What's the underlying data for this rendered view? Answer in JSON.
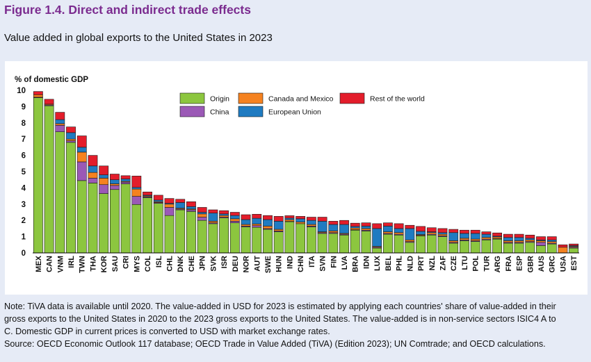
{
  "figure_title": "Figure 1.4. Direct and indirect trade effects",
  "subtitle": "Value added in global exports to the United States in 2023",
  "notes": {
    "line1": "Note: TiVA data is available until 2020. The value-added in USD for 2023 is estimated by applying each countries' share of value-added in their",
    "line2": "gross exports to the United States in 2020 to the 2023 gross exports to the United States. The value-added is in non-service sectors ISIC4 A to",
    "line3": "C. Domestic GDP in current prices is converted to USD with market exchange rates.",
    "line4": "Source: OECD Economic Outlook 117 database; OECD Trade in Value Added (TiVA) (Edition 2023); UN Comtrade; and OECD calculations."
  },
  "chart_data": {
    "type": "bar",
    "stacked": true,
    "ylabel": "% of domestic GDP",
    "ylim": [
      0,
      10
    ],
    "yticks": [
      0,
      1,
      2,
      3,
      4,
      5,
      6,
      7,
      8,
      9,
      10
    ],
    "grid": false,
    "legend_position": "top-right",
    "categories": [
      "MEX",
      "CAN",
      "VNM",
      "IRL",
      "TWN",
      "THA",
      "KOR",
      "SAU",
      "CRI",
      "MYS",
      "COL",
      "ISL",
      "CHL",
      "DNK",
      "CHE",
      "JPN",
      "SVK",
      "ISR",
      "DEU",
      "NOR",
      "AUT",
      "SWE",
      "HUN",
      "IND",
      "CHN",
      "ITA",
      "SVN",
      "FIN",
      "LVA",
      "BRA",
      "IDN",
      "LUX",
      "BEL",
      "PHL",
      "NLD",
      "PRT",
      "NZL",
      "ZAF",
      "CZE",
      "LTU",
      "POL",
      "TUR",
      "ARG",
      "FRA",
      "ESP",
      "GBR",
      "AUS",
      "GRC",
      "USA",
      "EST"
    ],
    "series": [
      {
        "name": "Origin",
        "color": "#8cc63f",
        "values": [
          9.55,
          9.05,
          7.45,
          6.8,
          4.45,
          4.3,
          3.65,
          3.9,
          4.25,
          2.98,
          3.4,
          3.05,
          2.3,
          2.65,
          2.55,
          2.0,
          1.8,
          2.15,
          1.85,
          1.6,
          1.58,
          1.45,
          1.3,
          1.92,
          1.8,
          1.6,
          1.2,
          1.2,
          1.1,
          1.4,
          1.35,
          0.3,
          1.15,
          1.1,
          0.65,
          1.05,
          1.1,
          1.0,
          0.6,
          0.75,
          0.7,
          0.8,
          0.85,
          0.6,
          0.6,
          0.65,
          0.45,
          0.55,
          0.0,
          0.3
        ]
      },
      {
        "name": "China",
        "color": "#9b59b6",
        "values": [
          0.03,
          0.05,
          0.4,
          0.1,
          1.15,
          0.3,
          0.55,
          0.25,
          0.1,
          0.5,
          0.05,
          0.05,
          0.5,
          0.05,
          0.1,
          0.2,
          0.05,
          0.05,
          0.1,
          0.05,
          0.1,
          0.05,
          0.05,
          0.02,
          0.0,
          0.05,
          0.05,
          0.05,
          0.05,
          0.03,
          0.05,
          0.05,
          0.05,
          0.05,
          0.05,
          0.03,
          0.05,
          0.05,
          0.05,
          0.05,
          0.05,
          0.05,
          0.03,
          0.05,
          0.05,
          0.05,
          0.2,
          0.05,
          0.0,
          0.05
        ]
      },
      {
        "name": "Canada and Mexico",
        "color": "#f58220",
        "values": [
          0.15,
          0.05,
          0.1,
          0.1,
          0.6,
          0.35,
          0.4,
          0.1,
          0.05,
          0.45,
          0.05,
          0.05,
          0.2,
          0.05,
          0.05,
          0.2,
          0.1,
          0.1,
          0.15,
          0.1,
          0.1,
          0.15,
          0.1,
          0.1,
          0.1,
          0.1,
          0.05,
          0.1,
          0.05,
          0.1,
          0.1,
          0.05,
          0.1,
          0.1,
          0.1,
          0.05,
          0.1,
          0.1,
          0.1,
          0.1,
          0.1,
          0.1,
          0.1,
          0.1,
          0.1,
          0.1,
          0.1,
          0.1,
          0.35,
          0.05
        ]
      },
      {
        "name": "European Union",
        "color": "#1f7bc1",
        "values": [
          0.0,
          0.0,
          0.25,
          0.4,
          0.3,
          0.4,
          0.2,
          0.25,
          0.15,
          0.1,
          0.05,
          0.1,
          0.05,
          0.35,
          0.15,
          0.1,
          0.5,
          0.1,
          0.2,
          0.3,
          0.35,
          0.4,
          0.5,
          0.1,
          0.2,
          0.25,
          0.65,
          0.4,
          0.55,
          0.1,
          0.15,
          1.1,
          0.35,
          0.25,
          0.7,
          0.2,
          0.05,
          0.1,
          0.5,
          0.3,
          0.35,
          0.2,
          0.05,
          0.2,
          0.2,
          0.1,
          0.05,
          0.1,
          0.0,
          0.05
        ]
      },
      {
        "name": "Rest of the world",
        "color": "#e31d2b",
        "values": [
          0.2,
          0.3,
          0.45,
          0.35,
          0.7,
          0.65,
          0.55,
          0.35,
          0.2,
          0.7,
          0.2,
          0.3,
          0.3,
          0.2,
          0.3,
          0.3,
          0.2,
          0.2,
          0.2,
          0.3,
          0.25,
          0.25,
          0.3,
          0.15,
          0.15,
          0.2,
          0.25,
          0.2,
          0.25,
          0.2,
          0.2,
          0.3,
          0.2,
          0.3,
          0.2,
          0.3,
          0.25,
          0.25,
          0.2,
          0.2,
          0.2,
          0.15,
          0.2,
          0.2,
          0.2,
          0.2,
          0.2,
          0.2,
          0.15,
          0.1
        ]
      }
    ]
  }
}
